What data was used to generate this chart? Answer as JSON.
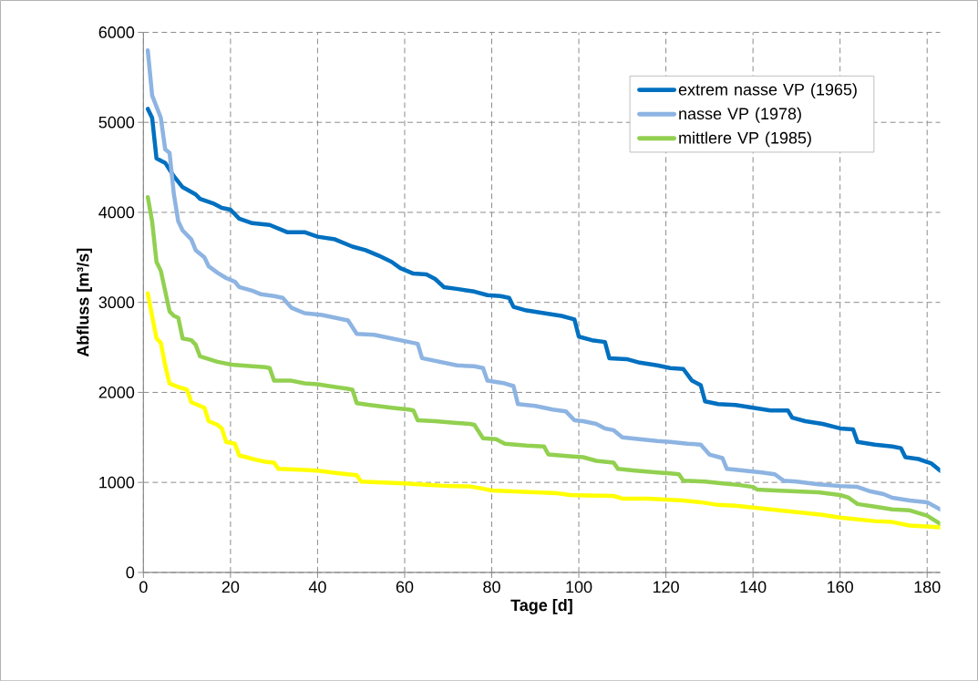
{
  "chart_data": {
    "type": "line",
    "xlabel": "Tage [d]",
    "ylabel": "Abfluss [m³/s]",
    "xlim": [
      0,
      183
    ],
    "xticks": [
      0,
      20,
      40,
      60,
      80,
      100,
      120,
      140,
      160,
      180
    ],
    "ylim": [
      0,
      6000
    ],
    "yticks": [
      0,
      1000,
      2000,
      3000,
      4000,
      5000,
      6000
    ],
    "grid": true,
    "legend": "top right",
    "marker": "none",
    "line_style": "solid",
    "series": [
      {
        "name": "extrem nasse VP (1965)",
        "color": "#0070c0",
        "x": [
          1,
          2,
          3,
          5,
          7,
          9,
          12,
          13,
          16,
          18,
          20,
          22,
          25,
          29,
          31,
          33,
          37,
          40,
          44,
          48,
          51,
          54,
          57,
          59,
          62,
          65,
          67,
          69,
          72,
          76,
          79,
          82,
          84,
          85,
          88,
          92,
          96,
          99,
          100,
          103,
          106,
          107,
          111,
          114,
          118,
          121,
          124,
          126,
          128,
          129,
          132,
          136,
          140,
          144,
          148,
          149,
          152,
          156,
          160,
          163,
          164,
          168,
          172,
          174,
          175,
          178,
          181,
          183
        ],
        "values": [
          5150,
          5050,
          4600,
          4550,
          4400,
          4280,
          4200,
          4150,
          4100,
          4050,
          4030,
          3930,
          3880,
          3860,
          3820,
          3780,
          3780,
          3730,
          3700,
          3620,
          3580,
          3520,
          3450,
          3380,
          3320,
          3310,
          3260,
          3170,
          3150,
          3120,
          3080,
          3070,
          3050,
          2950,
          2910,
          2880,
          2850,
          2810,
          2620,
          2580,
          2560,
          2380,
          2370,
          2330,
          2300,
          2270,
          2260,
          2130,
          2080,
          1900,
          1870,
          1860,
          1830,
          1800,
          1800,
          1720,
          1680,
          1650,
          1600,
          1590,
          1450,
          1420,
          1400,
          1380,
          1280,
          1260,
          1210,
          1130
        ]
      },
      {
        "name": "nasse VP (1978)",
        "color": "#8db4e2",
        "x": [
          1,
          2,
          4,
          5,
          6,
          7,
          8,
          9,
          11,
          12,
          14,
          15,
          17,
          19,
          21,
          22,
          25,
          27,
          30,
          32,
          34,
          37,
          41,
          44,
          47,
          49,
          53,
          57,
          61,
          63,
          64,
          68,
          72,
          76,
          78,
          79,
          83,
          85,
          86,
          90,
          94,
          97,
          99,
          101,
          104,
          106,
          108,
          110,
          114,
          118,
          121,
          125,
          128,
          130,
          133,
          134,
          138,
          142,
          145,
          147,
          150,
          155,
          160,
          164,
          167,
          170,
          172,
          176,
          180,
          183
        ],
        "values": [
          5800,
          5300,
          5050,
          4700,
          4660,
          4200,
          3900,
          3800,
          3700,
          3580,
          3500,
          3400,
          3330,
          3270,
          3230,
          3170,
          3130,
          3090,
          3070,
          3050,
          2940,
          2880,
          2860,
          2830,
          2800,
          2650,
          2640,
          2600,
          2560,
          2540,
          2380,
          2340,
          2300,
          2290,
          2270,
          2130,
          2100,
          2070,
          1870,
          1850,
          1810,
          1790,
          1690,
          1680,
          1650,
          1600,
          1580,
          1500,
          1480,
          1460,
          1450,
          1430,
          1420,
          1310,
          1270,
          1150,
          1130,
          1110,
          1090,
          1020,
          1010,
          980,
          960,
          950,
          900,
          870,
          830,
          800,
          780,
          700
        ]
      },
      {
        "name": "mittlere VP (1985)",
        "color": "#92d050",
        "x": [
          1,
          2,
          3,
          4,
          6,
          7,
          8,
          9,
          11,
          12,
          13,
          15,
          17,
          20,
          25,
          28,
          29,
          30,
          34,
          37,
          40,
          44,
          47,
          48,
          49,
          52,
          57,
          61,
          62,
          63,
          67,
          72,
          75,
          76,
          78,
          81,
          83,
          88,
          92,
          93,
          98,
          101,
          104,
          108,
          109,
          113,
          118,
          121,
          123,
          124,
          129,
          133,
          137,
          140,
          141,
          145,
          150,
          155,
          160,
          162,
          164,
          168,
          172,
          176,
          180,
          183
        ],
        "values": [
          4170,
          3900,
          3450,
          3350,
          2900,
          2850,
          2830,
          2600,
          2580,
          2530,
          2400,
          2370,
          2340,
          2310,
          2290,
          2280,
          2270,
          2130,
          2130,
          2100,
          2090,
          2060,
          2040,
          2030,
          1880,
          1860,
          1830,
          1810,
          1800,
          1690,
          1680,
          1660,
          1650,
          1640,
          1490,
          1480,
          1430,
          1410,
          1400,
          1310,
          1290,
          1280,
          1240,
          1220,
          1150,
          1130,
          1110,
          1100,
          1090,
          1020,
          1010,
          990,
          970,
          950,
          920,
          910,
          900,
          890,
          860,
          830,
          760,
          730,
          700,
          690,
          630,
          540
        ]
      },
      {
        "color": "#ffff00",
        "x": [
          1,
          3,
          4,
          5,
          6,
          8,
          10,
          11,
          13,
          14,
          15,
          17,
          18,
          19,
          21,
          22,
          26,
          28,
          30,
          31,
          36,
          40,
          45,
          49,
          50,
          55,
          60,
          65,
          70,
          75,
          78,
          80,
          85,
          90,
          95,
          98,
          102,
          108,
          110,
          116,
          120,
          124,
          128,
          132,
          136,
          140,
          144,
          148,
          152,
          156,
          160,
          164,
          168,
          172,
          174,
          176,
          180,
          183
        ],
        "values": [
          3100,
          2600,
          2550,
          2300,
          2100,
          2060,
          2030,
          1890,
          1850,
          1830,
          1680,
          1640,
          1600,
          1450,
          1430,
          1300,
          1250,
          1230,
          1220,
          1150,
          1140,
          1130,
          1100,
          1080,
          1010,
          1000,
          990,
          975,
          960,
          955,
          930,
          910,
          900,
          890,
          880,
          860,
          855,
          850,
          820,
          820,
          810,
          800,
          780,
          750,
          740,
          720,
          700,
          680,
          660,
          640,
          610,
          590,
          570,
          560,
          540,
          520,
          510,
          500
        ]
      }
    ]
  }
}
